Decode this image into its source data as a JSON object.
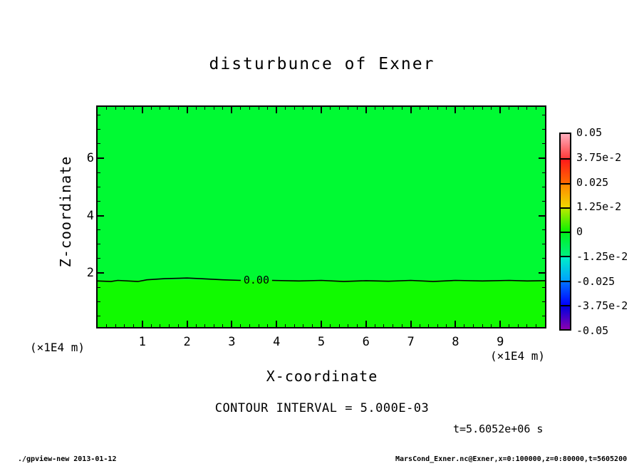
{
  "title": "disturbunce of Exner",
  "plot": {
    "fill_upper_color": "#00FA33",
    "fill_lower_color": "#11FA00",
    "contour_label": "0.00"
  },
  "axes": {
    "x": {
      "label": "X-coordinate",
      "unit_left": "(×1E4 m)",
      "unit_right": "(×1E4 m)",
      "min": 0,
      "max": 10,
      "major_ticks": [
        1,
        2,
        3,
        4,
        5,
        6,
        7,
        8,
        9
      ],
      "minor_step": 0.2
    },
    "z": {
      "label": "Z-coordinate",
      "min": 0,
      "max": 7.78,
      "major_ticks": [
        2,
        4,
        6
      ],
      "minor_step": 0.5
    }
  },
  "colorbar": {
    "tick_labels": [
      "0.05",
      "3.75e-2",
      "0.025",
      "1.25e-2",
      "0",
      "-1.25e-2",
      "-0.025",
      "-3.75e-2",
      "-0.05"
    ],
    "segments_top_to_bottom": [
      [
        "#FFAEBE",
        "#FF3A3A"
      ],
      [
        "#FF1A1A",
        "#FF6A00"
      ],
      [
        "#FF8800",
        "#F0D800"
      ],
      [
        "#B8E800",
        "#0AF000"
      ],
      [
        "#00F020",
        "#00F080"
      ],
      [
        "#00F0C8",
        "#00A0FF"
      ],
      [
        "#0070FF",
        "#0000FF"
      ],
      [
        "#0000E0",
        "#8A00B0"
      ]
    ]
  },
  "annotations": {
    "contour_interval": "CONTOUR INTERVAL = 5.000E-03",
    "time": "t=5.6052e+06 s"
  },
  "footer": {
    "left": "./gpview-new  2013-01-12",
    "right": "MarsCond_Exner.nc@Exner,x=0:100000,z=0:80000,t=5605200"
  },
  "chart_data": {
    "type": "heatmap",
    "title": "disturbunce of Exner",
    "xlabel": "X-coordinate (×1E4 m)",
    "ylabel": "Z-coordinate (×1E4 m)",
    "xlim": [
      0,
      10
    ],
    "ylim": [
      0,
      7.78
    ],
    "value_range": [
      -0.05,
      0.05
    ],
    "contour_interval": 0.005,
    "colorbar_levels": [
      0.05,
      0.0375,
      0.025,
      0.0125,
      0,
      -0.0125,
      -0.025,
      -0.0375,
      -0.05
    ],
    "field_description": "Exner function disturbance near zero everywhere: slightly positive (yellow-green fill) below the 0.00 contour at z≈1.75×1E4 m, slightly negative (green fill) above it",
    "time_label": "t=5.6052e+06 s",
    "contours": [
      {
        "level": 0.0,
        "label": "0.00",
        "label_position_x": 3.55,
        "label_position_z": 1.75,
        "polyline_left": [
          [
            0,
            1.72
          ],
          [
            0.3,
            1.7
          ],
          [
            0.45,
            1.74
          ],
          [
            0.9,
            1.7
          ],
          [
            1.1,
            1.76
          ],
          [
            1.5,
            1.8
          ],
          [
            2.0,
            1.82
          ],
          [
            2.3,
            1.8
          ],
          [
            2.8,
            1.76
          ],
          [
            3.2,
            1.74
          ]
        ],
        "polyline_right": [
          [
            3.9,
            1.74
          ],
          [
            4.5,
            1.72
          ],
          [
            5.0,
            1.74
          ],
          [
            5.5,
            1.7
          ],
          [
            6.0,
            1.73
          ],
          [
            6.5,
            1.71
          ],
          [
            7.0,
            1.74
          ],
          [
            7.5,
            1.7
          ],
          [
            8.0,
            1.74
          ],
          [
            8.6,
            1.72
          ],
          [
            9.2,
            1.74
          ],
          [
            9.6,
            1.72
          ],
          [
            10,
            1.73
          ]
        ]
      }
    ]
  }
}
